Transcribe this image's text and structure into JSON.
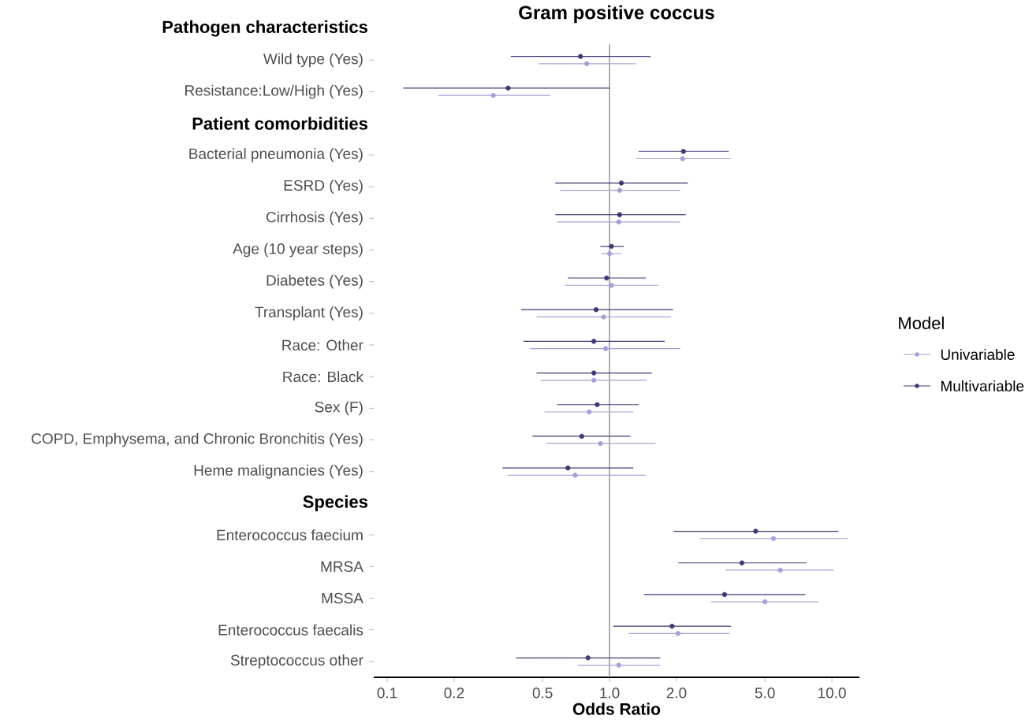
{
  "chart_data": {
    "type": "scatter",
    "title": "Gram positive coccus",
    "xlabel": "Odds Ratio",
    "orientation": "horizontal",
    "log": "x",
    "marker": "circle",
    "legend": "right",
    "legend_title": "Model",
    "xlim": [
      0.087,
      13.3
    ],
    "xticks": [
      0.1,
      0.2,
      0.5,
      {
        "value": 1,
        "label": "1.0"
      },
      {
        "value": 2,
        "label": "2.0"
      },
      {
        "value": 5,
        "label": "5.0"
      },
      {
        "value": 10,
        "label": "10.0"
      }
    ],
    "ref_lines": [
      {
        "axis": "x",
        "value": 1
      }
    ],
    "categories": [
      "Pathogen characteristics",
      "Wild type (Yes)",
      "Resistance:Low/High (Yes)",
      "Patient comorbidities",
      "Bacterial pneumonia (Yes)",
      "ESRD (Yes)",
      "Cirrhosis (Yes)",
      "Age (10 year steps)",
      "Diabetes (Yes)",
      "Transplant (Yes)",
      "Race: Other",
      "Race: Black",
      "Sex (F)",
      "COPD, Emphysema, and Chronic Bronchitis (Yes)",
      "Heme malignancies (Yes)",
      "Species",
      "Enterococcus faecium",
      "MRSA",
      "MSSA",
      "Enterococcus faecalis",
      "Streptococcus other"
    ],
    "series": [
      {
        "name": "Univariable",
        "color": "#a99fd4",
        "values": [
          null,
          0.79,
          0.3,
          null,
          2.13,
          1.11,
          1.1,
          1.0,
          1.02,
          0.94,
          0.96,
          0.85,
          0.81,
          0.91,
          0.7,
          null,
          5.46,
          5.86,
          5.0,
          2.03,
          1.1
        ],
        "errors": [
          null,
          [
            0.48,
            1.31
          ],
          [
            0.17,
            0.54
          ],
          null,
          [
            1.31,
            3.5
          ],
          [
            0.6,
            2.08
          ],
          [
            0.58,
            2.08
          ],
          [
            0.92,
            1.13
          ],
          [
            0.63,
            1.66
          ],
          [
            0.47,
            1.89
          ],
          [
            0.44,
            2.08
          ],
          [
            0.49,
            1.47
          ],
          [
            0.51,
            1.28
          ],
          [
            0.52,
            1.61
          ],
          [
            0.35,
            1.45
          ],
          null,
          [
            2.54,
            11.8
          ],
          [
            3.33,
            10.2
          ],
          [
            2.86,
            8.7
          ],
          [
            1.22,
            3.46
          ],
          [
            0.72,
            1.69
          ]
        ]
      },
      {
        "name": "Multivariable",
        "color": "#3f3972",
        "values": [
          null,
          0.74,
          0.35,
          null,
          2.15,
          1.13,
          1.11,
          1.02,
          0.97,
          0.87,
          0.85,
          0.85,
          0.88,
          0.75,
          0.65,
          null,
          4.54,
          3.94,
          3.29,
          1.91,
          0.8
        ],
        "errors": [
          null,
          [
            0.36,
            1.53
          ],
          [
            0.118,
            1.0
          ],
          null,
          [
            1.35,
            3.44
          ],
          [
            0.57,
            2.25
          ],
          [
            0.57,
            2.2
          ],
          [
            0.91,
            1.16
          ],
          [
            0.65,
            1.46
          ],
          [
            0.4,
            1.93
          ],
          [
            0.41,
            1.77
          ],
          [
            0.47,
            1.55
          ],
          [
            0.58,
            1.35
          ],
          [
            0.45,
            1.24
          ],
          [
            0.33,
            1.28
          ],
          null,
          [
            1.94,
            10.7
          ],
          [
            2.04,
            7.7
          ],
          [
            1.43,
            7.6
          ],
          [
            1.04,
            3.52
          ],
          [
            0.38,
            1.69
          ]
        ]
      }
    ]
  }
}
